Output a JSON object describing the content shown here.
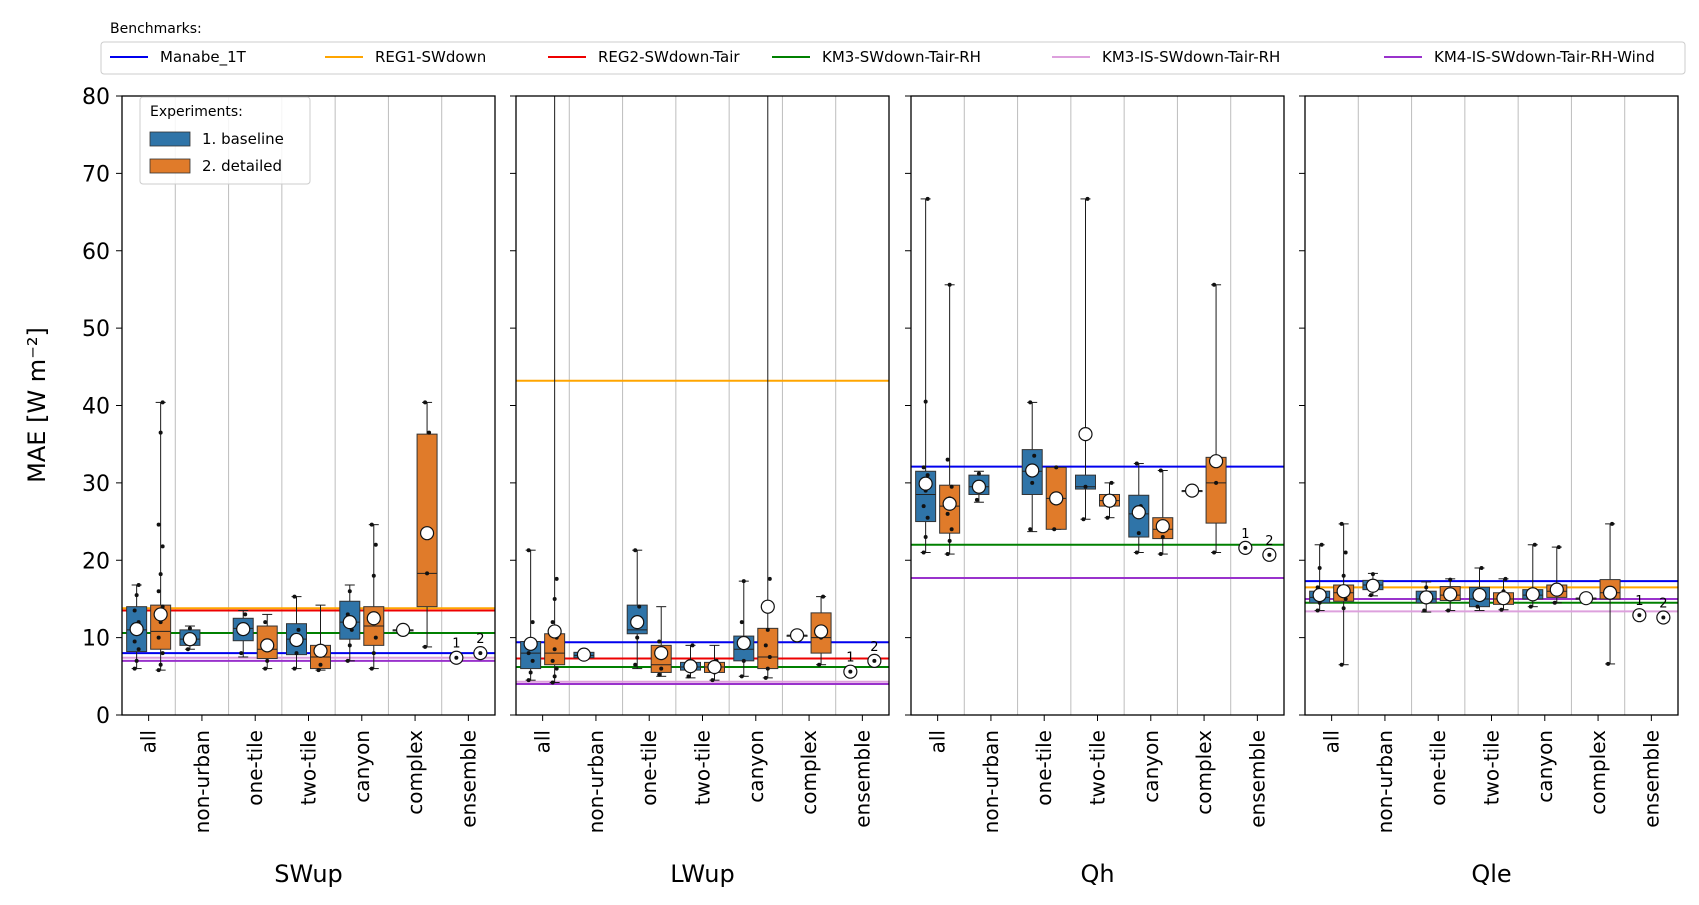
{
  "benchmarks_title": "Benchmarks:",
  "benchmarks": [
    {
      "name": "Manabe_1T",
      "color": "#0000ee"
    },
    {
      "name": "REG1-SWdown",
      "color": "#ffa500"
    },
    {
      "name": "REG2-SWdown-Tair",
      "color": "#ee0000"
    },
    {
      "name": "KM3-SWdown-Tair-RH",
      "color": "#008000"
    },
    {
      "name": "KM3-IS-SWdown-Tair-RH",
      "color": "#dda0dd"
    },
    {
      "name": "KM4-IS-SWdown-Tair-RH-Wind",
      "color": "#9932cc"
    }
  ],
  "experiments_title": "Experiments:",
  "experiments": [
    {
      "name": "1. baseline",
      "color": "#2f74a8"
    },
    {
      "name": "2. detailed",
      "color": "#e07b2a"
    }
  ],
  "chart_data": {
    "type": "box",
    "ylabel": "MAE [W m⁻²]",
    "ylim": [
      0,
      80
    ],
    "yticks": [
      0,
      10,
      20,
      30,
      40,
      50,
      60,
      70,
      80
    ],
    "categories": [
      "all",
      "non-urban",
      "one-tile",
      "two-tile",
      "canyon",
      "complex",
      "ensemble"
    ],
    "ensemble_labels": [
      "1",
      "2"
    ],
    "panels": [
      {
        "title": "SWup",
        "benchmarks": [
          8.0,
          13.8,
          13.5,
          10.6,
          7.4,
          7.0
        ],
        "boxes": [
          [
            {
              "q1": 8.2,
              "median": 11.0,
              "q3": 14.0,
              "wlo": 6.0,
              "whi": 16.8,
              "mean": 11.1,
              "pts": [
                6.0,
                7.0,
                8.5,
                9.5,
                11.0,
                12.0,
                13.5,
                15.5,
                16.8
              ]
            },
            {
              "q1": 8.5,
              "median": 10.8,
              "q3": 14.2,
              "wlo": 5.8,
              "whi": 40.4,
              "mean": 13.0,
              "pts": [
                5.8,
                6.5,
                8.0,
                10.0,
                12.0,
                14.0,
                16.0,
                18.2,
                21.8,
                24.6,
                36.5,
                40.4
              ]
            }
          ],
          [
            {
              "q1": 9.0,
              "median": 9.8,
              "q3": 11.0,
              "wlo": 8.5,
              "whi": 11.5,
              "mean": 9.8,
              "pts": [
                8.5,
                11.2
              ]
            },
            null
          ],
          [
            {
              "q1": 9.6,
              "median": 11.2,
              "q3": 12.5,
              "wlo": 7.5,
              "whi": 13.5,
              "mean": 11.1,
              "pts": [
                8.0,
                10.5,
                13.0
              ]
            },
            {
              "q1": 7.3,
              "median": 8.5,
              "q3": 11.5,
              "wlo": 6.0,
              "whi": 13.0,
              "mean": 9.0,
              "pts": [
                6.0,
                7.0,
                9.0,
                12.0
              ]
            }
          ],
          [
            {
              "q1": 7.8,
              "median": 9.8,
              "q3": 11.8,
              "wlo": 6.0,
              "whi": 15.3,
              "mean": 9.7,
              "pts": [
                6.0,
                8.0,
                11.0,
                15.3
              ]
            },
            {
              "q1": 6.0,
              "median": 7.5,
              "q3": 9.0,
              "wlo": 5.8,
              "whi": 14.2,
              "mean": 8.3,
              "pts": [
                5.8,
                6.5,
                8.5
              ]
            }
          ],
          [
            {
              "q1": 9.8,
              "median": 12.0,
              "q3": 14.7,
              "wlo": 7.0,
              "whi": 16.8,
              "mean": 12.0,
              "pts": [
                7.0,
                9.0,
                11.0,
                13.0,
                16.0
              ]
            },
            {
              "q1": 9.0,
              "median": 11.5,
              "q3": 14.0,
              "wlo": 6.0,
              "whi": 24.6,
              "mean": 12.5,
              "pts": [
                6.0,
                8.0,
                10.0,
                13.0,
                18.0,
                22.0,
                24.6
              ]
            }
          ],
          [
            {
              "q1": 11.0,
              "median": 11.0,
              "q3": 11.0,
              "wlo": 11.0,
              "whi": 11.0,
              "mean": 11.0,
              "pts": [
                11.0
              ]
            },
            {
              "q1": 14.0,
              "median": 18.3,
              "q3": 36.3,
              "wlo": 8.8,
              "whi": 40.4,
              "mean": 23.5,
              "pts": [
                8.8,
                18.3,
                36.5,
                40.4
              ]
            }
          ],
          [
            {
              "mean": 7.4
            },
            {
              "mean": 8.0
            }
          ]
        ]
      },
      {
        "title": "LWup",
        "benchmarks": [
          9.4,
          43.2,
          7.3,
          6.2,
          4.3,
          4.0
        ],
        "boxes": [
          [
            {
              "q1": 6.0,
              "median": 8.0,
              "q3": 9.5,
              "wlo": 4.5,
              "whi": 21.3,
              "mean": 9.2,
              "pts": [
                4.5,
                5.5,
                7.0,
                8.0,
                9.0,
                12.0,
                21.3
              ]
            },
            {
              "q1": 6.5,
              "median": 8.0,
              "q3": 10.5,
              "wlo": 4.2,
              "whi": 80,
              "mean": 10.8,
              "pts": [
                4.2,
                5.0,
                6.0,
                7.0,
                8.5,
                10.0,
                12.0,
                15.0,
                17.6
              ]
            }
          ],
          [
            {
              "q1": 7.4,
              "median": 7.7,
              "q3": 8.1,
              "wlo": 7.2,
              "whi": 8.2,
              "mean": 7.8,
              "pts": [
                7.4,
                8.0
              ]
            },
            null
          ],
          [
            {
              "q1": 10.5,
              "median": 11.0,
              "q3": 14.2,
              "wlo": 6.0,
              "whi": 21.3,
              "mean": 12.0,
              "pts": [
                6.5,
                10.0,
                14.0,
                21.3
              ]
            },
            {
              "q1": 5.5,
              "median": 6.5,
              "q3": 9.0,
              "wlo": 5.0,
              "whi": 14.0,
              "mean": 8.0,
              "pts": [
                5.2,
                6.0,
                7.5,
                9.5
              ]
            }
          ],
          [
            {
              "q1": 5.8,
              "median": 6.2,
              "q3": 6.8,
              "wlo": 4.8,
              "whi": 9.0,
              "mean": 6.3,
              "pts": [
                5.0,
                6.5,
                9.0
              ]
            },
            {
              "q1": 5.5,
              "median": 6.2,
              "q3": 6.8,
              "wlo": 4.5,
              "whi": 9.0,
              "mean": 6.2,
              "pts": [
                4.5,
                5.5,
                7.0
              ]
            }
          ],
          [
            {
              "q1": 7.0,
              "median": 8.5,
              "q3": 10.2,
              "wlo": 5.0,
              "whi": 17.3,
              "mean": 9.3,
              "pts": [
                5.0,
                7.0,
                9.0,
                12.0,
                17.3
              ]
            },
            {
              "q1": 6.0,
              "median": 7.5,
              "q3": 11.2,
              "wlo": 4.8,
              "whi": 80,
              "mean": 14.0,
              "pts": [
                4.8,
                6.0,
                7.5,
                9.0,
                11.0,
                17.6
              ]
            }
          ],
          [
            {
              "q1": 10.3,
              "median": 10.3,
              "q3": 10.3,
              "wlo": 10.3,
              "whi": 10.3,
              "mean": 10.3,
              "pts": [
                10.3
              ]
            },
            {
              "q1": 8.0,
              "median": 10.0,
              "q3": 13.2,
              "wlo": 6.5,
              "whi": 15.3,
              "mean": 10.8,
              "pts": [
                6.5,
                10.0,
                15.3
              ]
            }
          ],
          [
            {
              "mean": 5.6
            },
            {
              "mean": 7.0
            }
          ]
        ]
      },
      {
        "title": "Qh",
        "benchmarks": [
          32.1,
          null,
          null,
          22.0,
          null,
          17.7
        ],
        "boxes": [
          [
            {
              "q1": 25.0,
              "median": 28.5,
              "q3": 31.5,
              "wlo": 21.0,
              "whi": 66.7,
              "mean": 29.9,
              "pts": [
                21.0,
                23.0,
                25.5,
                27.0,
                29.0,
                31.0,
                32.0,
                40.5,
                66.7
              ]
            },
            {
              "q1": 23.5,
              "median": 27.0,
              "q3": 29.7,
              "wlo": 20.8,
              "whi": 55.6,
              "mean": 27.3,
              "pts": [
                20.8,
                22.5,
                24.0,
                26.0,
                28.0,
                29.5,
                33.0,
                55.6
              ]
            }
          ],
          [
            {
              "q1": 28.5,
              "median": 29.5,
              "q3": 31.0,
              "wlo": 27.5,
              "whi": 31.5,
              "mean": 29.5,
              "pts": [
                27.8,
                31.2
              ]
            },
            null
          ],
          [
            {
              "q1": 28.5,
              "median": 31.5,
              "q3": 34.3,
              "wlo": 23.7,
              "whi": 40.4,
              "mean": 31.6,
              "pts": [
                24.0,
                30.0,
                33.5,
                40.4
              ]
            },
            {
              "q1": 24.0,
              "median": 28.0,
              "q3": 32.0,
              "wlo": 24.0,
              "whi": 32.0,
              "mean": 28.0,
              "pts": [
                24.0,
                32.0
              ]
            }
          ],
          [
            {
              "q1": 29.2,
              "median": 29.5,
              "q3": 31.0,
              "wlo": 25.3,
              "whi": 66.7,
              "mean": 36.3,
              "pts": [
                25.3,
                29.5,
                66.7
              ]
            },
            {
              "q1": 27.0,
              "median": 27.7,
              "q3": 28.5,
              "wlo": 25.5,
              "whi": 30.0,
              "mean": 27.7,
              "pts": [
                25.5,
                28.0,
                30.0
              ]
            }
          ],
          [
            {
              "q1": 23.0,
              "median": 26.0,
              "q3": 28.4,
              "wlo": 21.0,
              "whi": 32.5,
              "mean": 26.2,
              "pts": [
                21.0,
                23.5,
                27.0,
                32.5
              ]
            },
            {
              "q1": 22.8,
              "median": 24.0,
              "q3": 25.5,
              "wlo": 20.8,
              "whi": 31.6,
              "mean": 24.4,
              "pts": [
                20.8,
                23.0,
                25.0,
                31.6
              ]
            }
          ],
          [
            {
              "q1": 29.0,
              "median": 29.0,
              "q3": 29.0,
              "wlo": 29.0,
              "whi": 29.0,
              "mean": 29.0,
              "pts": [
                29.0
              ]
            },
            {
              "q1": 24.8,
              "median": 30.0,
              "q3": 33.3,
              "wlo": 21.0,
              "whi": 55.6,
              "mean": 32.8,
              "pts": [
                21.0,
                30.0,
                33.0,
                55.6
              ]
            }
          ],
          [
            {
              "mean": 21.6
            },
            {
              "mean": 20.7
            }
          ]
        ]
      },
      {
        "title": "Qle",
        "benchmarks": [
          17.3,
          16.5,
          15.0,
          14.5,
          13.4,
          15.0
        ],
        "boxes": [
          [
            {
              "q1": 14.5,
              "median": 15.2,
              "q3": 16.0,
              "wlo": 13.5,
              "whi": 22.0,
              "mean": 15.5,
              "pts": [
                13.5,
                14.5,
                15.5,
                16.5,
                19.0,
                22.0
              ]
            },
            {
              "q1": 14.7,
              "median": 15.8,
              "q3": 16.8,
              "wlo": 6.5,
              "whi": 24.7,
              "mean": 16.0,
              "pts": [
                6.5,
                13.8,
                15.0,
                16.5,
                18.0,
                21.0,
                24.7
              ]
            }
          ],
          [
            {
              "q1": 16.2,
              "median": 16.8,
              "q3": 17.4,
              "wlo": 15.4,
              "whi": 18.3,
              "mean": 16.7,
              "pts": [
                15.5,
                18.2
              ]
            },
            null
          ],
          [
            {
              "q1": 14.5,
              "median": 15.0,
              "q3": 16.0,
              "wlo": 13.3,
              "whi": 17.2,
              "mean": 15.2,
              "pts": [
                13.5,
                16.5
              ]
            },
            {
              "q1": 14.8,
              "median": 15.5,
              "q3": 16.6,
              "wlo": 13.5,
              "whi": 17.6,
              "mean": 15.6,
              "pts": [
                13.5,
                17.5
              ]
            }
          ],
          [
            {
              "q1": 14.0,
              "median": 15.0,
              "q3": 16.5,
              "wlo": 13.5,
              "whi": 19.0,
              "mean": 15.5,
              "pts": [
                14.0,
                16.0,
                19.0
              ]
            },
            {
              "q1": 14.3,
              "median": 15.0,
              "q3": 15.8,
              "wlo": 13.6,
              "whi": 17.6,
              "mean": 15.1,
              "pts": [
                13.6,
                16.0,
                17.6
              ]
            }
          ],
          [
            {
              "q1": 15.0,
              "median": 15.5,
              "q3": 16.2,
              "wlo": 14.0,
              "whi": 22.0,
              "mean": 15.6,
              "pts": [
                14.0,
                16.0,
                22.0
              ]
            },
            {
              "q1": 15.2,
              "median": 16.0,
              "q3": 16.8,
              "wlo": 14.5,
              "whi": 21.7,
              "mean": 16.2,
              "pts": [
                14.5,
                16.5,
                21.7
              ]
            }
          ],
          [
            {
              "q1": 15.1,
              "median": 15.1,
              "q3": 15.1,
              "wlo": 15.1,
              "whi": 15.1,
              "mean": 15.1,
              "pts": [
                15.1
              ]
            },
            {
              "q1": 15.0,
              "median": 15.8,
              "q3": 17.5,
              "wlo": 6.6,
              "whi": 24.7,
              "mean": 15.8,
              "pts": [
                6.6,
                15.5,
                24.7
              ]
            }
          ],
          [
            {
              "mean": 12.9
            },
            {
              "mean": 12.6
            }
          ]
        ]
      }
    ]
  }
}
